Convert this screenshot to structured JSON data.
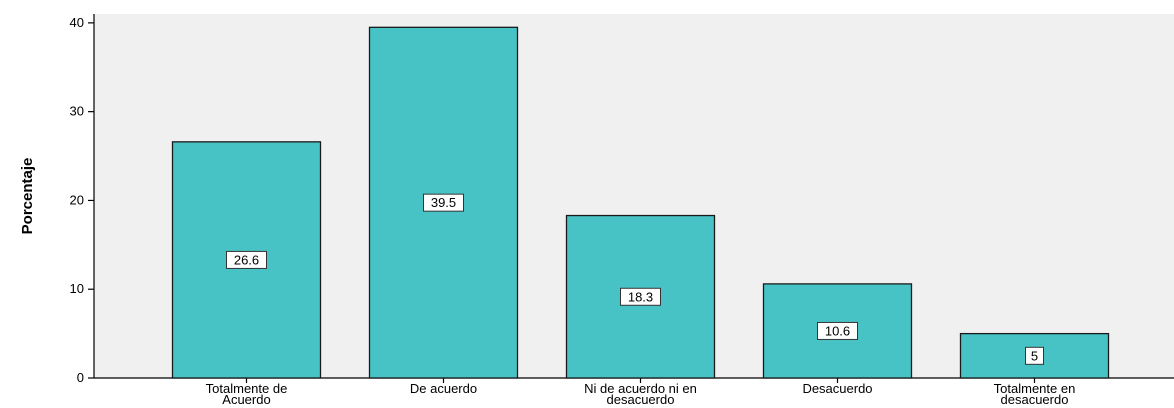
{
  "chart_data": {
    "type": "bar",
    "title": "",
    "xlabel": "",
    "ylabel": "Porcentaje",
    "ylim": [
      0,
      41
    ],
    "yticks": [
      0,
      10,
      20,
      30,
      40
    ],
    "grid": false,
    "categories": [
      [
        "Totalmente de",
        "Acuerdo"
      ],
      [
        "De acuerdo"
      ],
      [
        "Ni de acuerdo ni en",
        "desacuerdo"
      ],
      [
        "Desacuerdo"
      ],
      [
        "Totalmente en",
        "desacuerdo"
      ]
    ],
    "values": [
      26.6,
      39.5,
      18.3,
      10.6,
      5
    ],
    "data_labels": [
      "26.6",
      "39.5",
      "18.3",
      "10.6",
      "5"
    ]
  },
  "colors": {
    "bar_fill": "#47c3c6",
    "bar_stroke": "#1a1a1a",
    "plot_background": "#f0f0f0",
    "axis": "#000000",
    "label_box": "#ffffff"
  }
}
